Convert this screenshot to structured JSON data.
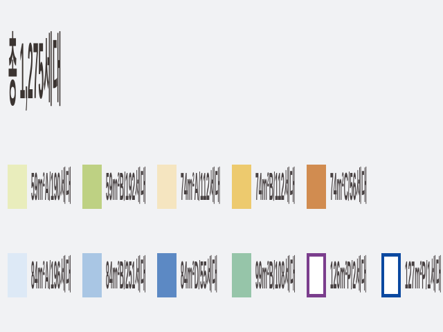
{
  "title": {
    "text": "총 1,275세대",
    "total_units": 1275
  },
  "colors": {
    "background": "#f1f2f4",
    "title_text": "#3b3431",
    "label_text": "#474041"
  },
  "legend": {
    "rows": [
      {
        "items": [
          {
            "label": "59m²A/190세대",
            "unit_type": "59m²A",
            "units": 190,
            "color": "#e9edbc"
          },
          {
            "label": "59m²B/192세대",
            "unit_type": "59m²B",
            "units": 192,
            "color": "#bed183"
          },
          {
            "label": "74m²A/112세대",
            "unit_type": "74m²A",
            "units": 112,
            "color": "#f5e5c0"
          },
          {
            "label": "74m²B/112세대",
            "unit_type": "74m²B",
            "units": 112,
            "color": "#edca6e"
          },
          {
            "label": "74m²C/56세대",
            "unit_type": "74m²C",
            "units": 56,
            "color": "#d18c50"
          }
        ]
      },
      {
        "items": [
          {
            "label": "84m²A/196세대",
            "unit_type": "84m²A",
            "units": 196,
            "color": "#dde9f6"
          },
          {
            "label": "84m²B/251세대",
            "unit_type": "84m²B",
            "units": 251,
            "color": "#a9c6e4"
          },
          {
            "label": "84m²D/55세대",
            "unit_type": "84m²D",
            "units": 55,
            "color": "#5c89c4"
          },
          {
            "label": "99m²B/108세대",
            "unit_type": "99m²B",
            "units": 108,
            "color": "#96c5a9"
          },
          {
            "label": "126m²P/2세대",
            "unit_type": "126m²P",
            "units": 2,
            "color": "#ffffff",
            "border": "#7b3e8d"
          },
          {
            "label": "127m²P/1세대",
            "unit_type": "127m²P",
            "units": 1,
            "color": "#ffffff",
            "border": "#0c49a0"
          }
        ]
      }
    ]
  }
}
